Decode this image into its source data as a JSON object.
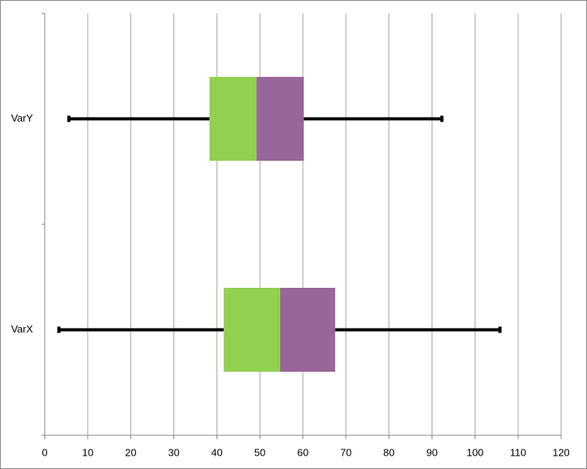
{
  "chart_data": {
    "type": "box",
    "orientation": "horizontal",
    "categories": [
      "VarX",
      "VarY"
    ],
    "min": [
      3.3,
      5.6
    ],
    "q1": [
      41.6,
      38.3
    ],
    "median": [
      54.7,
      49.2
    ],
    "q3": [
      67.5,
      60.2
    ],
    "max": [
      105.8,
      92.3
    ],
    "box_colors": [
      "#92d050",
      "#996699"
    ],
    "whisker_color": "#000000",
    "xlim": [
      0,
      120
    ],
    "xticks": [
      0,
      10,
      20,
      30,
      40,
      50,
      60,
      70,
      80,
      90,
      100,
      110,
      120
    ],
    "grid": true
  }
}
